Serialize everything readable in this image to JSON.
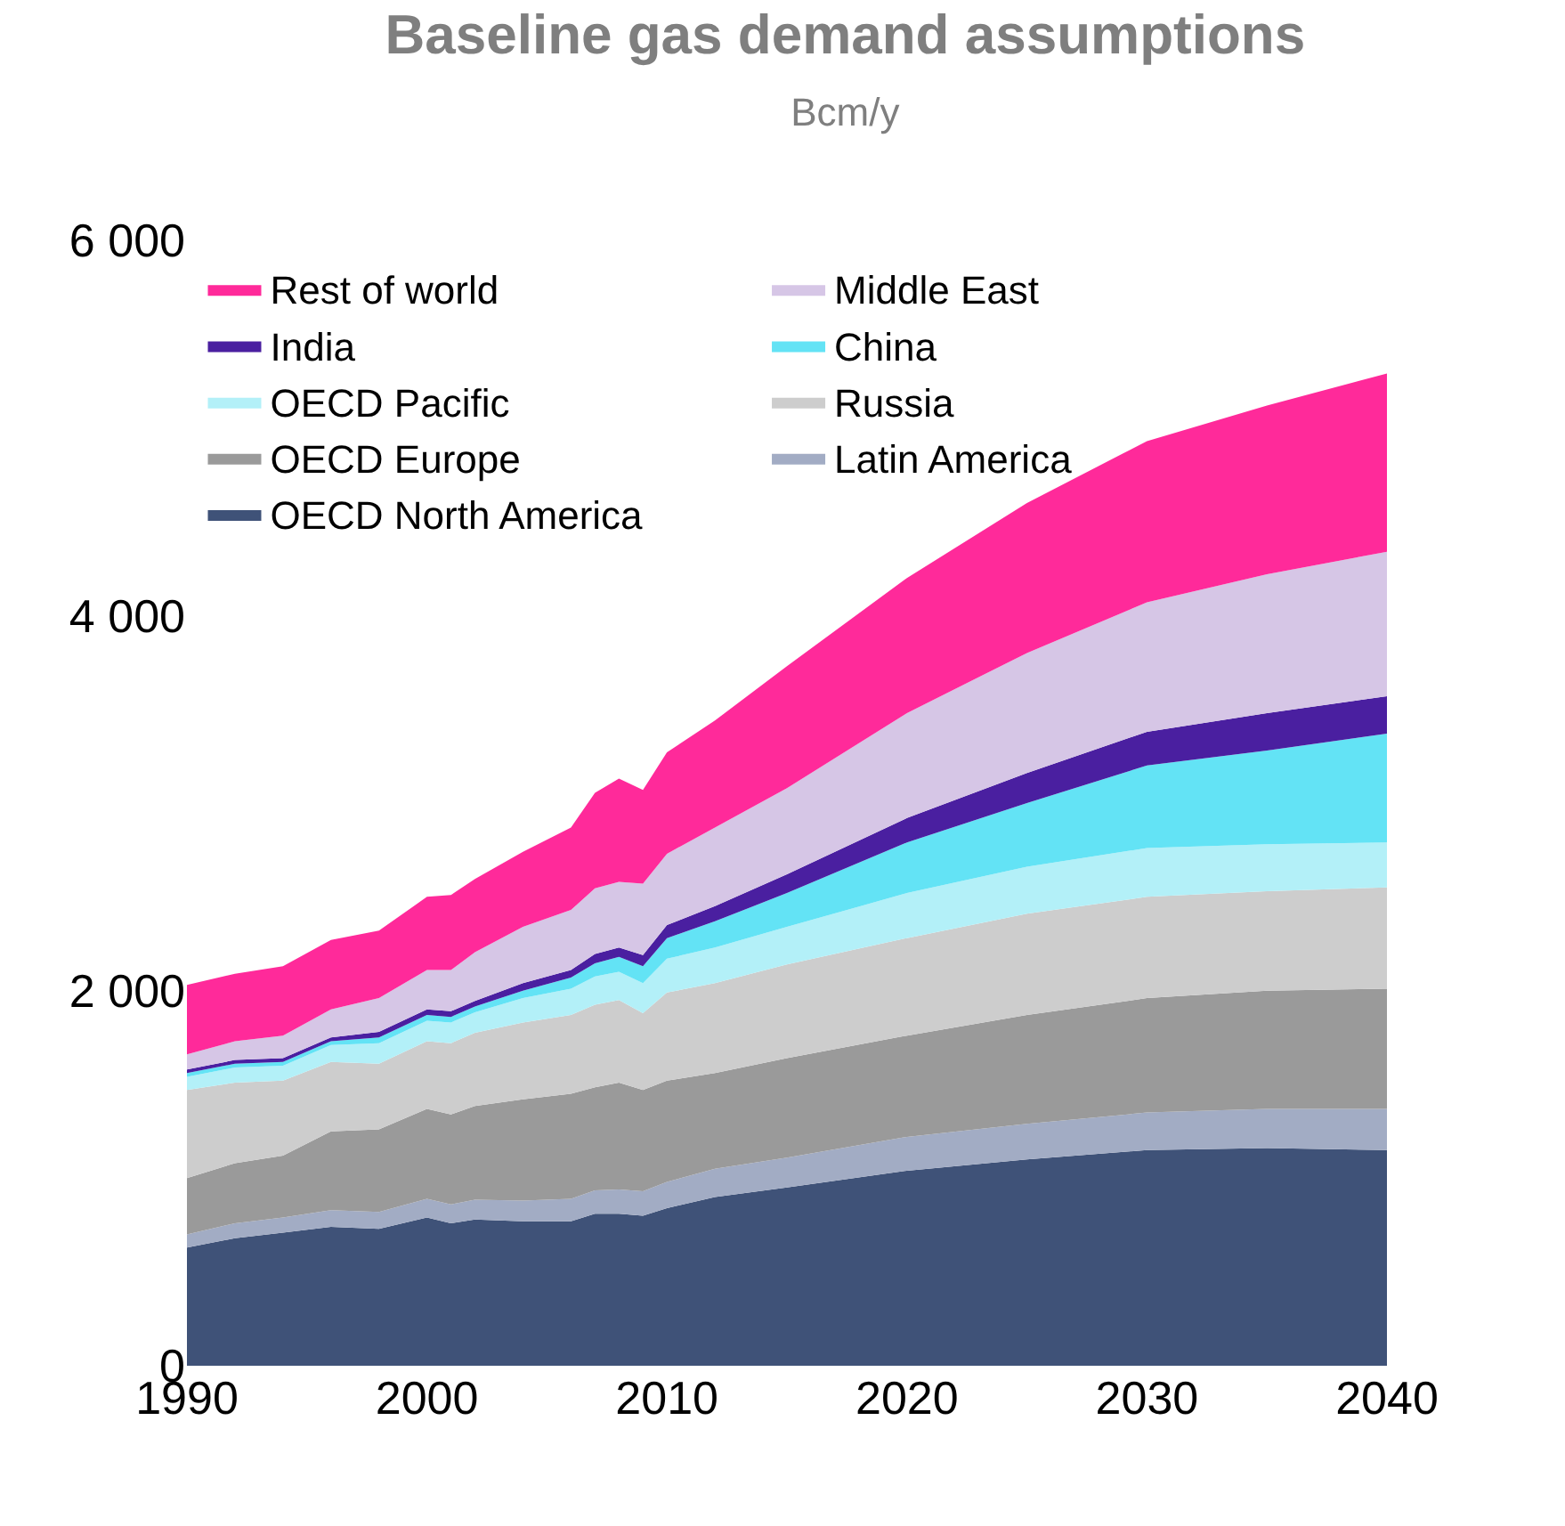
{
  "chart_data": {
    "type": "area",
    "stacked": true,
    "title": "Baseline gas demand assumptions",
    "subtitle": "Bcm/y",
    "x": [
      1990,
      1992,
      1994,
      1996,
      1998,
      2000,
      2001,
      2002,
      2004,
      2006,
      2007,
      2008,
      2009,
      2010,
      2012,
      2015,
      2020,
      2025,
      2030,
      2035,
      2040
    ],
    "xlim": [
      1990,
      2040
    ],
    "xticks": [
      1990,
      2000,
      2010,
      2020,
      2030,
      2040
    ],
    "ylim": [
      0,
      6000
    ],
    "yticks": [
      {
        "value": 0,
        "label": "0"
      },
      {
        "value": 2000,
        "label": "2 000"
      },
      {
        "value": 4000,
        "label": "4 000"
      },
      {
        "value": 6000,
        "label": "6 000"
      }
    ],
    "legend": "top left",
    "series": [
      {
        "name": "OECD North America",
        "color": "#3f5278",
        "values": [
          630,
          680,
          710,
          740,
          730,
          790,
          760,
          780,
          770,
          770,
          810,
          810,
          800,
          840,
          900,
          950,
          1040,
          1100,
          1150,
          1160,
          1150
        ]
      },
      {
        "name": "Latin America",
        "color": "#a2acc4",
        "values": [
          70,
          80,
          80,
          90,
          90,
          100,
          100,
          105,
          110,
          120,
          125,
          130,
          130,
          140,
          150,
          160,
          180,
          190,
          200,
          210,
          220
        ]
      },
      {
        "name": "OECD Europe",
        "color": "#9a9a9a",
        "values": [
          300,
          320,
          330,
          420,
          440,
          480,
          480,
          500,
          540,
          560,
          550,
          570,
          540,
          540,
          510,
          530,
          540,
          580,
          610,
          630,
          640
        ]
      },
      {
        "name": "Russia",
        "color": "#cdcdcd",
        "values": [
          470,
          430,
          400,
          370,
          350,
          360,
          380,
          390,
          410,
          420,
          440,
          440,
          410,
          470,
          480,
          500,
          520,
          540,
          540,
          530,
          540
        ]
      },
      {
        "name": "OECD Pacific",
        "color": "#b3f0f8",
        "values": [
          70,
          80,
          80,
          90,
          110,
          110,
          110,
          110,
          130,
          140,
          150,
          150,
          160,
          180,
          190,
          200,
          240,
          250,
          260,
          250,
          240
        ]
      },
      {
        "name": "China",
        "color": "#63e3f5",
        "values": [
          20,
          20,
          20,
          20,
          30,
          30,
          30,
          30,
          40,
          60,
          70,
          80,
          90,
          110,
          140,
          180,
          270,
          340,
          440,
          500,
          580
        ]
      },
      {
        "name": "India",
        "color": "#4a1fa0",
        "values": [
          20,
          20,
          20,
          20,
          30,
          30,
          30,
          30,
          40,
          40,
          50,
          50,
          60,
          70,
          80,
          100,
          130,
          160,
          180,
          200,
          200
        ]
      },
      {
        "name": "Middle East",
        "color": "#d6c6e6",
        "values": [
          80,
          100,
          120,
          150,
          180,
          210,
          220,
          260,
          300,
          320,
          350,
          350,
          380,
          380,
          420,
          460,
          560,
          640,
          690,
          740,
          770
        ]
      },
      {
        "name": "Rest of world",
        "color": "#ff2a9a",
        "values": [
          370,
          360,
          370,
          370,
          360,
          390,
          400,
          390,
          400,
          440,
          510,
          550,
          500,
          540,
          570,
          650,
          720,
          800,
          860,
          900,
          950
        ]
      }
    ]
  }
}
